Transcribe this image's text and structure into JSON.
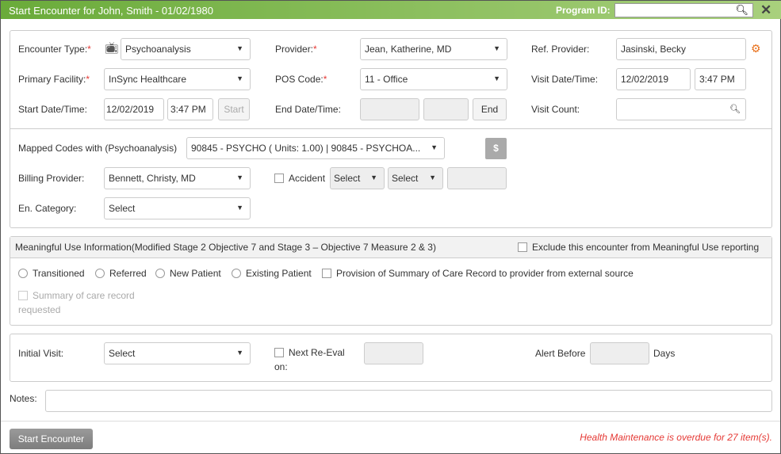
{
  "header": {
    "title": "Start Encounter for John, Smith - 01/02/1980",
    "program_id_label": "Program ID:",
    "program_id_value": ""
  },
  "colors": {
    "header_start": "#6aab3a",
    "header_end": "#a9d07d",
    "required": "#e53935",
    "gear": "#e8701a",
    "warning": "#e53935"
  },
  "encounter": {
    "encounter_type_label": "Encounter Type:",
    "encounter_type_value": "Psychoanalysis",
    "provider_label": "Provider:",
    "provider_value": "Jean, Katherine, MD",
    "ref_provider_label": "Ref. Provider:",
    "ref_provider_value": "Jasinski, Becky",
    "primary_facility_label": "Primary Facility:",
    "primary_facility_value": "InSync Healthcare",
    "pos_code_label": "POS Code:",
    "pos_code_value": "11 - Office",
    "visit_datetime_label": "Visit Date/Time:",
    "visit_date": "12/02/2019",
    "visit_time": "3:47 PM",
    "start_datetime_label": "Start Date/Time:",
    "start_date": "12/02/2019",
    "start_time": "3:47 PM",
    "start_button": "Start",
    "end_datetime_label": "End Date/Time:",
    "end_date": "",
    "end_time": "",
    "end_button": "End",
    "visit_count_label": "Visit Count:",
    "visit_count_value": "",
    "required_mark": "*"
  },
  "billing": {
    "mapped_codes_label": "Mapped Codes with (Psychoanalysis)",
    "mapped_codes_value": "90845 - PSYCHO ( Units: 1.00) | 90845 - PSYCHOA...",
    "dollar_button": "$",
    "billing_provider_label": "Billing Provider:",
    "billing_provider_value": "Bennett, Christy, MD",
    "accident_label": "Accident",
    "accident_select1": "Select",
    "accident_select2": "Select",
    "accident_input": "",
    "category_label": "En. Category:",
    "category_value": "Select"
  },
  "meaningful_use": {
    "title": "Meaningful Use Information(Modified Stage 2 Objective 7 and Stage 3 – Objective 7 Measure 2 & 3)",
    "exclude_label": "Exclude this encounter from Meaningful Use reporting",
    "radios": [
      "Transitioned",
      "Referred",
      "New Patient",
      "Existing Patient"
    ],
    "provision_label": "Provision of Summary of Care Record to provider from external source",
    "summary_label_1": "Summary of care record",
    "summary_label_2": "requested"
  },
  "visit": {
    "initial_visit_label": "Initial Visit:",
    "initial_visit_value": "Select",
    "next_reeval_label_1": "Next Re-Eval",
    "next_reeval_label_2": "on:",
    "alert_before_label": "Alert Before",
    "alert_days_label": "Days"
  },
  "notes": {
    "label": "Notes:",
    "value": ""
  },
  "footer": {
    "start_button": "Start Encounter",
    "warning": "Health Maintenance is overdue for 27 item(s)."
  }
}
